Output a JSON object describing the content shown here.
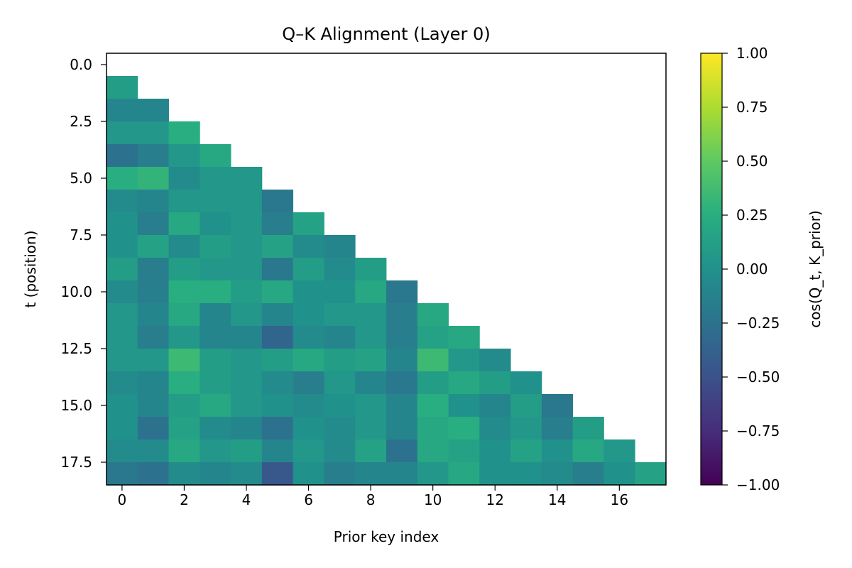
{
  "chart_data": {
    "type": "heatmap",
    "title": "Q–K Alignment (Layer 0)",
    "xlabel": "Prior key index",
    "ylabel": "t (position)",
    "colorbar_label": "cos(Q_t, K_prior)",
    "colormap": "viridis",
    "vmin": -1.0,
    "vmax": 1.0,
    "x_range": [
      -0.5,
      17.5
    ],
    "y_range": [
      18.5,
      -0.5
    ],
    "x_ticks": [
      "0",
      "2",
      "4",
      "6",
      "8",
      "10",
      "12",
      "14",
      "16"
    ],
    "y_ticks": [
      "0.0",
      "2.5",
      "5.0",
      "7.5",
      "10.0",
      "12.5",
      "15.0",
      "17.5"
    ],
    "colorbar_ticks": [
      "1.00",
      "0.75",
      "0.50",
      "0.25",
      "0.00",
      "−0.25",
      "−0.50",
      "−0.75",
      "−1.00"
    ],
    "rows": [
      [],
      [
        0.1
      ],
      [
        -0.1,
        -0.1
      ],
      [
        0.05,
        0.05,
        0.25
      ],
      [
        -0.25,
        -0.15,
        0.05,
        0.2
      ],
      [
        0.25,
        0.3,
        -0.05,
        0.05,
        0.05
      ],
      [
        -0.05,
        -0.1,
        0.05,
        0.05,
        0.05,
        -0.2
      ],
      [
        0.0,
        -0.15,
        0.2,
        0.0,
        0.05,
        -0.15,
        0.15
      ],
      [
        0.0,
        0.15,
        -0.05,
        0.1,
        0.05,
        0.15,
        -0.05,
        -0.1
      ],
      [
        0.1,
        -0.15,
        0.1,
        0.05,
        0.05,
        -0.2,
        0.1,
        -0.05,
        0.1
      ],
      [
        -0.05,
        -0.15,
        0.25,
        0.25,
        0.1,
        0.2,
        0.0,
        0.0,
        0.2,
        -0.2
      ],
      [
        0.05,
        -0.1,
        0.2,
        -0.1,
        0.05,
        -0.1,
        0.0,
        0.05,
        0.05,
        -0.15,
        0.2
      ],
      [
        0.05,
        -0.15,
        0.05,
        -0.1,
        -0.1,
        -0.35,
        -0.05,
        -0.1,
        0.05,
        -0.15,
        0.15,
        0.2
      ],
      [
        0.05,
        0.05,
        0.35,
        0.1,
        0.05,
        0.1,
        0.2,
        0.1,
        0.15,
        -0.1,
        0.35,
        0.05,
        -0.05
      ],
      [
        -0.05,
        -0.1,
        0.25,
        0.1,
        0.05,
        -0.05,
        -0.15,
        0.05,
        -0.1,
        -0.2,
        0.1,
        0.2,
        0.1,
        0.0
      ],
      [
        0.0,
        -0.1,
        0.1,
        0.2,
        0.05,
        0.0,
        -0.05,
        0.0,
        0.05,
        -0.1,
        0.25,
        0.0,
        -0.1,
        0.1,
        -0.2
      ],
      [
        0.0,
        -0.25,
        0.15,
        -0.05,
        -0.1,
        -0.25,
        0.0,
        -0.05,
        0.05,
        -0.1,
        0.2,
        0.25,
        -0.05,
        0.05,
        -0.15,
        0.1
      ],
      [
        -0.05,
        -0.05,
        0.2,
        0.05,
        0.1,
        -0.1,
        0.05,
        -0.05,
        0.15,
        -0.25,
        0.2,
        0.15,
        0.0,
        0.15,
        0.0,
        0.2,
        0.05
      ],
      [
        -0.2,
        -0.25,
        -0.05,
        -0.1,
        -0.05,
        -0.45,
        0.0,
        -0.15,
        -0.1,
        -0.1,
        0.05,
        0.2,
        0.0,
        0.0,
        -0.05,
        -0.15,
        0.0,
        0.15
      ]
    ]
  }
}
